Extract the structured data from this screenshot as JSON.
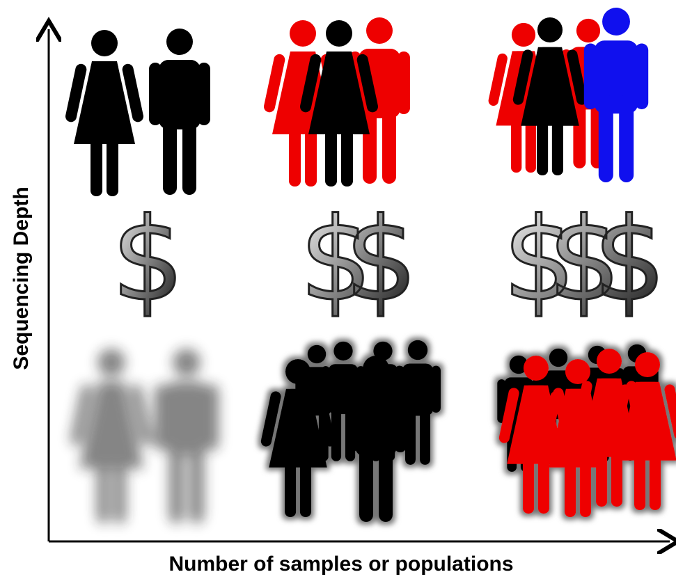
{
  "axes": {
    "y_label": "Sequencing Depth",
    "x_label": "Number of samples or populations"
  },
  "costs": [
    "$",
    "$$",
    "$$$"
  ]
}
